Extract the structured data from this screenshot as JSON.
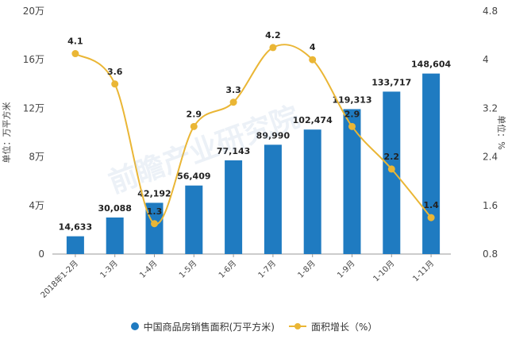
{
  "chart_data": {
    "type": "bar+line",
    "categories": [
      "2018年1-2月",
      "1-3月",
      "1-4月",
      "1-5月",
      "1-6月",
      "1-7月",
      "1-8月",
      "1-9月",
      "1-10月",
      "1-11月"
    ],
    "series": [
      {
        "name": "中国商品房销售面积(万平方米)",
        "type": "bar",
        "axis": "left",
        "values": [
          14633,
          30088,
          42192,
          56409,
          77143,
          89990,
          102474,
          119313,
          133717,
          148604
        ],
        "labels": [
          "14,633",
          "30,088",
          "42,192",
          "56,409",
          "77,143",
          "89,990",
          "102,474",
          "119,313",
          "133,717",
          "148,604"
        ]
      },
      {
        "name": "面积增长（%）",
        "type": "line",
        "axis": "right",
        "values": [
          4.1,
          3.6,
          1.3,
          2.9,
          3.3,
          4.2,
          4.0,
          2.9,
          2.2,
          1.4
        ],
        "labels": [
          "4.1",
          "3.6",
          "1.3",
          "2.9",
          "3.3",
          "4.2",
          "4",
          "2.9",
          "2.2",
          "1.4"
        ]
      }
    ],
    "y_left": {
      "label": "单位：万平方米",
      "ylim": [
        0,
        200000
      ],
      "ticks": [
        "0",
        "4万",
        "8万",
        "12万",
        "16万",
        "20万"
      ]
    },
    "y_right": {
      "label": "单位：%",
      "ylim": [
        0.8,
        4.8
      ],
      "ticks": [
        "0.8",
        "1.6",
        "2.4",
        "3.2",
        "4",
        "4.8"
      ]
    },
    "grid": false,
    "legend_position": "bottom",
    "colors": {
      "bar": "#1f7bc1",
      "line": "#eab635"
    }
  },
  "watermark": "前瞻产业研究院"
}
